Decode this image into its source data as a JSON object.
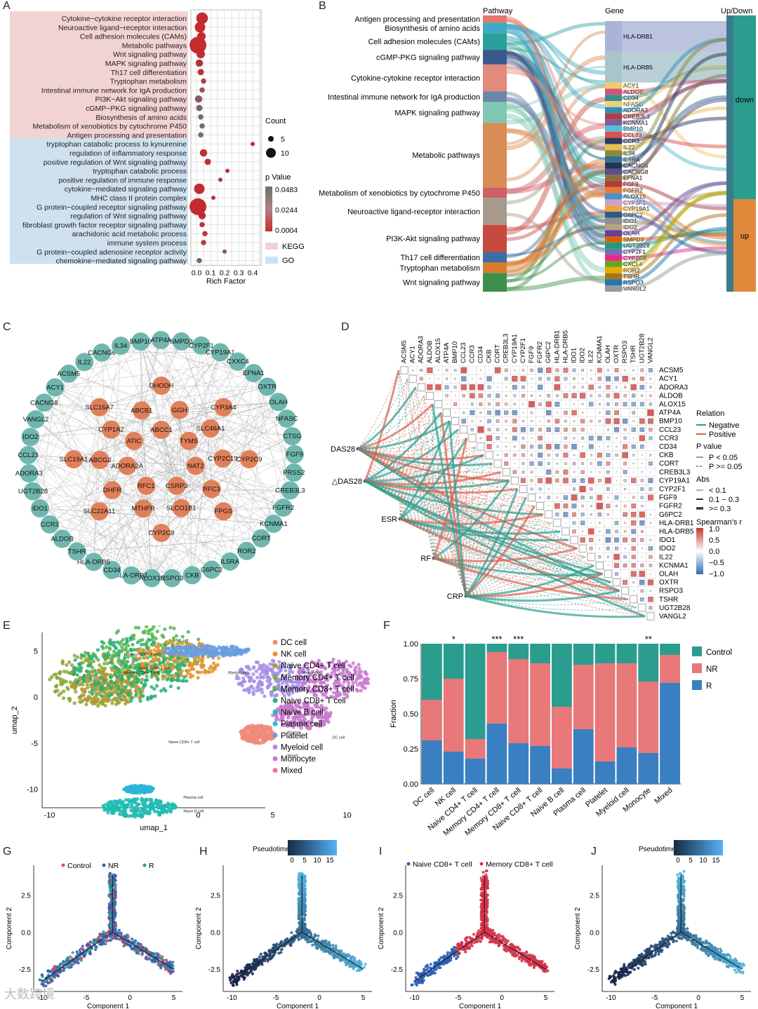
{
  "panels": {
    "A": "A",
    "B": "B",
    "C": "C",
    "D": "D",
    "E": "E",
    "F": "F",
    "G": "G",
    "H": "H",
    "I": "I",
    "J": "J"
  },
  "watermark": "大数跨境",
  "colors": {
    "kegg_bg": "#f2d3d4",
    "go_bg": "#cfe0ee",
    "teal": "#2a9d8f",
    "nr": "#e8787a",
    "r": "#3a7fc1",
    "node_teal": "#6fb7ae",
    "node_orange": "#e0805a"
  },
  "panelA": {
    "terms": [
      {
        "label": "Cytokine−cytokine receptor interaction",
        "rf": 0.04,
        "count": 9,
        "p": 0.002,
        "group": "KEGG"
      },
      {
        "label": "Neuroactive ligand−receptor interaction",
        "rf": 0.025,
        "count": 8,
        "p": 0.001,
        "group": "KEGG"
      },
      {
        "label": "Cell adhesion molecules (CAMs)",
        "rf": 0.035,
        "count": 6,
        "p": 0.003,
        "group": "KEGG"
      },
      {
        "label": "Metabolic pathways",
        "rf": 0.01,
        "count": 14,
        "p": 0.002,
        "group": "KEGG"
      },
      {
        "label": "Wnt signaling pathway",
        "rf": 0.03,
        "count": 6,
        "p": 0.004,
        "group": "KEGG"
      },
      {
        "label": "MAPK signaling pathway",
        "rf": 0.02,
        "count": 5,
        "p": 0.008,
        "group": "KEGG"
      },
      {
        "label": "Th17 cell differentiation",
        "rf": 0.03,
        "count": 4,
        "p": 0.01,
        "group": "KEGG"
      },
      {
        "label": "Tryptophan metabolism",
        "rf": 0.05,
        "count": 3,
        "p": 0.02,
        "group": "KEGG"
      },
      {
        "label": "Intestinal immune network for IgA production",
        "rf": 0.04,
        "count": 3,
        "p": 0.03,
        "group": "KEGG"
      },
      {
        "label": "PI3K−Akt signaling pathway",
        "rf": 0.015,
        "count": 5,
        "p": 0.035,
        "group": "KEGG"
      },
      {
        "label": "cGMP−PKG signaling pathway",
        "rf": 0.02,
        "count": 4,
        "p": 0.045,
        "group": "KEGG"
      },
      {
        "label": "Biosynthesis of amino acids",
        "rf": 0.03,
        "count": 3,
        "p": 0.048,
        "group": "KEGG"
      },
      {
        "label": "Metabolism of xenobiotics by cytochrome P450",
        "rf": 0.04,
        "count": 3,
        "p": 0.048,
        "group": "KEGG"
      },
      {
        "label": "Antigen processing and presentation",
        "rf": 0.03,
        "count": 3,
        "p": 0.048,
        "group": "KEGG"
      },
      {
        "label": "tryptophan catabolic process to kynurenine",
        "rf": 0.4,
        "count": 2,
        "p": 0.004,
        "group": "GO"
      },
      {
        "label": "regulation of inflammatory response",
        "rf": 0.05,
        "count": 5,
        "p": 0.003,
        "group": "GO"
      },
      {
        "label": "positive regulation of Wnt signaling pathway",
        "rf": 0.08,
        "count": 4,
        "p": 0.006,
        "group": "GO"
      },
      {
        "label": "tryptophan catabolic process",
        "rf": 0.22,
        "count": 2,
        "p": 0.008,
        "group": "GO"
      },
      {
        "label": "positive regulation of immune response",
        "rf": 0.17,
        "count": 2,
        "p": 0.01,
        "group": "GO"
      },
      {
        "label": "cytokine−mediated signaling pathway",
        "rf": 0.02,
        "count": 8,
        "p": 0.002,
        "group": "GO"
      },
      {
        "label": "MHC class II protein complex",
        "rf": 0.12,
        "count": 2,
        "p": 0.012,
        "group": "GO"
      },
      {
        "label": "G protein−coupled receptor signaling pathway",
        "rf": 0.01,
        "count": 14,
        "p": 0.002,
        "group": "GO"
      },
      {
        "label": "regulation of Wnt signaling pathway",
        "rf": 0.04,
        "count": 5,
        "p": 0.003,
        "group": "GO"
      },
      {
        "label": "fibroblast growth factor receptor signaling pathway",
        "rf": 0.04,
        "count": 3,
        "p": 0.008,
        "group": "GO"
      },
      {
        "label": "arachidonic acid metabolic process",
        "rf": 0.06,
        "count": 3,
        "p": 0.012,
        "group": "GO"
      },
      {
        "label": "immune system process",
        "rf": 0.05,
        "count": 3,
        "p": 0.015,
        "group": "GO"
      },
      {
        "label": "G protein−coupled adenosine receptor activity",
        "rf": 0.2,
        "count": 2,
        "p": 0.03,
        "group": "GO"
      },
      {
        "label": "chemokine−mediated signaling pathway",
        "rf": 0.02,
        "count": 3,
        "p": 0.045,
        "group": "GO"
      }
    ],
    "xticks": [
      "0.0",
      "0.1",
      "0.2",
      "0.3",
      "0.4"
    ],
    "xlabel": "Rich Factor",
    "count_title": "Count",
    "count_ticks": [
      "5",
      "10"
    ],
    "p_title": "p Value",
    "p_ticks": [
      "0.0483",
      "0.0244",
      "0.0004"
    ],
    "legend_kegg": "KEGG",
    "legend_go": "GO"
  },
  "panelB": {
    "header_pathway": "Pathway",
    "header_gene": "Gene",
    "header_updown": "Up/Down",
    "pathways": [
      "Antigen processing and presentation",
      "Biosynthesis of amino acids",
      "Cell adhesion molecules (CAMs)",
      "cGMP-PKG signaling pathway",
      "Cytokine-cytokine receptor interaction",
      "Intestinal immune network for IgA production",
      "MAPK signaling pathway",
      "Metabolic pathways",
      "Metabolism of xenobiotics by cytochrome P450",
      "Neuroactive ligand-receptor interaction",
      "PI3K-Akt signaling pathway",
      "Th17 cell differentiation",
      "Tryptophan metabolism",
      "Wnt signaling pathway"
    ],
    "genes": [
      "HLA-DRB1",
      "HLA-DRB5",
      "ACY1",
      "ALDOB",
      "CD34",
      "NFASC",
      "ADORA3",
      "CREB3L3",
      "KCNMA1",
      "BMP10",
      "CCL23",
      "CCR3",
      "IL22",
      "IL34",
      "IL5RA",
      "CACNG6",
      "CACNG8",
      "EFNA1",
      "FGF9",
      "FGFR2",
      "ALOX15",
      "CYP3F1",
      "CYP19A1",
      "G6PC2",
      "IDO1",
      "IDO2",
      "OLAH",
      "SMPD3",
      "UGT2B28",
      "CYP2F1",
      "CYP2C8",
      "CXCL4",
      "ROR2",
      "TSHR",
      "RSPO3",
      "VANGL2"
    ],
    "updown": [
      "down",
      "up"
    ]
  },
  "panelC": {
    "outer": [
      "SMPD3",
      "CYP2F1",
      "CYP19A1",
      "CXXC4",
      "EFNA1",
      "OXTR",
      "OLAH",
      "NFASC",
      "CTSG",
      "FGF9",
      "PRSS2",
      "CREB3L3",
      "FGFR2",
      "KCNMA1",
      "CORT",
      "ROR2",
      "IL5RA",
      "G6PC2",
      "CKB",
      "RSPO3",
      "ALOX15",
      "HLA-DRB1",
      "CD34",
      "HLA-DRB5",
      "TSHR",
      "ALDOB",
      "CCR3",
      "IDO1",
      "UGT2B28",
      "ADORA3",
      "CCL23",
      "IDO2",
      "VANGL2",
      "CACNG8",
      "ACY1",
      "ACSM5",
      "IL22",
      "CACNG6",
      "IL34",
      "BMP10",
      "ATP4A"
    ],
    "inner": [
      "DHODH",
      "CYP3A4",
      "CYP2C9",
      "FPGS",
      "CYP2C8",
      "SLC22A11",
      "SLC19A1",
      "SLC16A7",
      "GGH",
      "SLC46A1",
      "CYP2C19",
      "RFC3",
      "SLCO1B1",
      "MTHFR",
      "DHFR",
      "ABCG2",
      "CYP1A2",
      "ABCB1",
      "ABCC1",
      "TYMS",
      "NAT2",
      "CSRP3",
      "RFC1",
      "ADORA2A",
      "ATIC"
    ]
  },
  "panelD": {
    "genes": [
      "ACSM5",
      "ACY1",
      "ADORA3",
      "ALDOB",
      "ALOX15",
      "ATP4A",
      "BMP10",
      "CCL23",
      "CCR3",
      "CD34",
      "CKB",
      "CORT",
      "CREB3L3",
      "CYP19A1",
      "CYP2F1",
      "FGF9",
      "FGFR2",
      "G6PC2",
      "HLA-DRB1",
      "HLA-DRB5",
      "IDO1",
      "IDO2",
      "IL22",
      "KCNMA1",
      "OLAH",
      "OXTR",
      "RSPO3",
      "TSHR",
      "UGT2B28",
      "VANGL2"
    ],
    "clinical": [
      "DAS28",
      "△DAS28",
      "ESR",
      "RF",
      "CRP"
    ],
    "legend_relation": "Relation",
    "negative": "Negative",
    "positive": "Positive",
    "legend_p": "P value",
    "p1": "P < 0.05",
    "p2": "P >= 0.05",
    "legend_abs": "Abs",
    "abs1": "< 0.1",
    "abs2": "0.1 − 0.3",
    "abs3": ">= 0.3",
    "legend_r": "Spearman's r",
    "r_ticks": [
      "1.0",
      "0.5",
      "0.0",
      "−0.5",
      "−1.0"
    ]
  },
  "panelE": {
    "xlabel": "umap_1",
    "ylabel": "umap_2",
    "xticks": [
      "-10",
      "-5",
      "0",
      "5",
      "10"
    ],
    "yticks": [
      "5",
      "0",
      "-5",
      "-10"
    ],
    "celltypes": [
      {
        "name": "DC cell",
        "color": "#f08a7a"
      },
      {
        "name": "NK cell",
        "color": "#e0952a"
      },
      {
        "name": "Naive CD4+ T cell",
        "color": "#b09a36"
      },
      {
        "name": "Memory CD4+ T cell",
        "color": "#8ba83a"
      },
      {
        "name": "Memory CD8+ T cell",
        "color": "#55b74f"
      },
      {
        "name": "Naive CD8+ T cell",
        "color": "#25b07a"
      },
      {
        "name": "Naive B cell",
        "color": "#1fbcb3"
      },
      {
        "name": "Plasma cell",
        "color": "#2cb5d8"
      },
      {
        "name": "Platelet",
        "color": "#6a9ee0"
      },
      {
        "name": "Myeloid cell",
        "color": "#a58ee3"
      },
      {
        "name": "Monocyte",
        "color": "#c97ad1"
      },
      {
        "name": "Mixed",
        "color": "#ee6fb6"
      }
    ],
    "cluster_labels": [
      "NK cell",
      "Memory CD8+ T cell",
      "Memory CD4+ T cell",
      "Naive CD4+ T cell",
      "Naive CD8+ T cell",
      "Myeloid cell",
      "Monocyte",
      "DC cell",
      "Platelet",
      "Mixed",
      "Plasma cell",
      "Naive B cell"
    ]
  },
  "panelF": {
    "ylabel": "Fraction",
    "yticks": [
      "0.00",
      "0.25",
      "0.50",
      "0.75",
      "1.00"
    ],
    "legend": [
      "Control",
      "NR",
      "R"
    ]
  },
  "panelG": {
    "legend": [
      "Control",
      "NR",
      "R"
    ],
    "xlabel": "Component 1",
    "ylabel": "Component 2",
    "xticks": [
      "-10",
      "-5",
      "0",
      "5"
    ],
    "yticks": [
      "2.5",
      "0.0",
      "-2.5"
    ]
  },
  "panelH": {
    "legend_title": "Pseudotime",
    "legend_ticks": [
      "0",
      "5",
      "10",
      "15"
    ],
    "xlabel": "Component 1",
    "ylabel": "Component 2",
    "xticks": [
      "-10",
      "-5",
      "0",
      "5"
    ],
    "yticks": [
      "2.5",
      "0.0",
      "-2.5"
    ]
  },
  "panelI": {
    "legend": [
      "Naive CD8+ T cell",
      "Memory CD8+ T cell"
    ],
    "xlabel": "Component 1",
    "ylabel": "Component 2",
    "xticks": [
      "-10",
      "-5",
      "0",
      "5"
    ],
    "yticks": [
      "2.5",
      "0.0",
      "-2.5"
    ]
  },
  "panelJ": {
    "legend_title": "Pseudotime",
    "legend_ticks": [
      "0",
      "5",
      "10",
      "15"
    ],
    "xlabel": "Component 1",
    "ylabel": "Component 2",
    "xticks": [
      "-10",
      "-5",
      "0",
      "5"
    ],
    "yticks": [
      "2.5",
      "0.0",
      "-2.5"
    ]
  },
  "chart_data": [
    {
      "type": "scatter",
      "panel": "A",
      "xlabel": "Rich Factor",
      "xlim": [
        0,
        0.45
      ],
      "legend": "right"
    },
    {
      "type": "bar",
      "panel": "F",
      "ylabel": "Fraction",
      "ylim": [
        0,
        1
      ],
      "categories": [
        "DC cell",
        "NK cell",
        "Naive CD4+ T cell",
        "Memory CD4+ T cell",
        "Memory CD8+ T cell",
        "Naive CD8+ T cell",
        "Naive B cell",
        "Plasma cell",
        "Platelet",
        "Myeloid cell",
        "Monocyte",
        "Mixed"
      ],
      "significance": [
        "",
        "*",
        "",
        "***",
        "***",
        "",
        "",
        "",
        "",
        "",
        "**",
        ""
      ],
      "series": [
        {
          "name": "R",
          "values": [
            0.31,
            0.23,
            0.18,
            0.43,
            0.29,
            0.27,
            0.11,
            0.39,
            0.16,
            0.26,
            0.22,
            0.72
          ],
          "color": "#3a7fc1"
        },
        {
          "name": "NR",
          "values": [
            0.29,
            0.52,
            0.14,
            0.51,
            0.6,
            0.59,
            0.44,
            0.46,
            0.7,
            0.6,
            0.51,
            0.2
          ],
          "color": "#e8787a"
        },
        {
          "name": "Control",
          "values": [
            0.4,
            0.25,
            0.68,
            0.06,
            0.11,
            0.14,
            0.45,
            0.15,
            0.14,
            0.14,
            0.27,
            0.08
          ],
          "color": "#2a9d8f"
        }
      ],
      "legend": "right"
    }
  ]
}
